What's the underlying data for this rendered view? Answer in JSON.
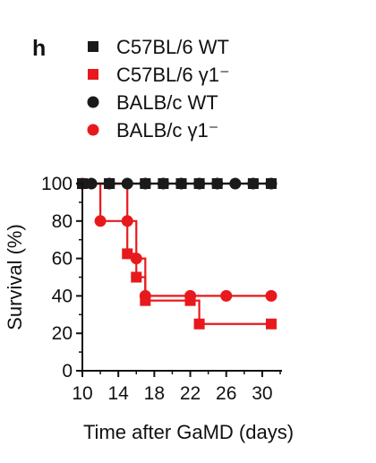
{
  "panel_label": "h",
  "chart_data": {
    "type": "line",
    "step": true,
    "xlabel": "Time after GaMD (days)",
    "ylabel": "Survival (%)",
    "xlim": [
      10,
      32
    ],
    "ylim": [
      0,
      100
    ],
    "x_ticks": [
      10,
      14,
      18,
      22,
      26,
      30
    ],
    "y_ticks": [
      0,
      20,
      40,
      60,
      80,
      100
    ],
    "legend_position": "top",
    "series": [
      {
        "name": "C57BL/6 WT",
        "color": "#1a1a1a",
        "marker": "square",
        "x": [
          10,
          13,
          17,
          19,
          21,
          23,
          25,
          29,
          31
        ],
        "y": [
          100,
          100,
          100,
          100,
          100,
          100,
          100,
          100,
          100
        ]
      },
      {
        "name": "C57BL/6 γ1⁻",
        "color": "#e8191c",
        "marker": "square",
        "x": [
          10,
          13,
          15,
          16,
          17,
          22,
          23,
          31
        ],
        "y": [
          100,
          100,
          62.5,
          50,
          37.5,
          37.5,
          25,
          25
        ]
      },
      {
        "name": "BALB/c WT",
        "color": "#1a1a1a",
        "marker": "circle",
        "x": [
          11,
          13,
          15,
          17,
          19,
          21,
          23,
          25,
          27,
          29,
          31
        ],
        "y": [
          100,
          100,
          100,
          100,
          100,
          100,
          100,
          100,
          100,
          100,
          100
        ]
      },
      {
        "name": "BALB/c γ1⁻",
        "color": "#e8191c",
        "marker": "circle",
        "x": [
          10,
          12,
          15,
          16,
          17,
          22,
          26,
          31
        ],
        "y": [
          100,
          80,
          80,
          60,
          40,
          40,
          40,
          40
        ]
      }
    ]
  }
}
